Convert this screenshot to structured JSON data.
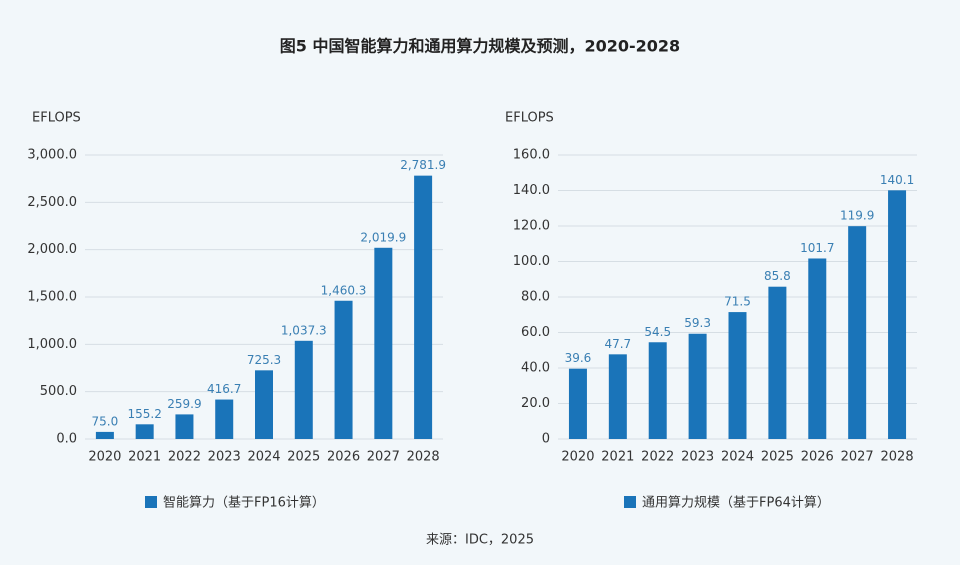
{
  "title": "图5 中国智能算力和通用算力规模及预测，2020-2028",
  "source": "来源：IDC，2025",
  "chart_data": [
    {
      "type": "bar",
      "y_label": "EFLOPS",
      "categories": [
        "2020",
        "2021",
        "2022",
        "2023",
        "2024",
        "2025",
        "2026",
        "2027",
        "2028"
      ],
      "series": [
        {
          "name": "智能算力（基于FP16计算）",
          "color": "#1a74b9",
          "values": [
            75.0,
            155.2,
            259.9,
            416.7,
            725.3,
            1037.3,
            1460.3,
            2019.9,
            2781.9
          ],
          "value_labels": [
            "75.0",
            "155.2",
            "259.9",
            "416.7",
            "725.3",
            "1,037.3",
            "1,460.3",
            "2,019.9",
            "2,781.9"
          ]
        }
      ],
      "ylim": [
        0,
        3000
      ],
      "yticks": [
        {
          "value": 0,
          "label": "0.0"
        },
        {
          "value": 500,
          "label": "500.0"
        },
        {
          "value": 1000,
          "label": "1,000.0"
        },
        {
          "value": 1500,
          "label": "1,500.0"
        },
        {
          "value": 2000,
          "label": "2,000.0"
        },
        {
          "value": 2500,
          "label": "2,500.0"
        },
        {
          "value": 3000,
          "label": "3,000.0"
        }
      ],
      "grid": true
    },
    {
      "type": "bar",
      "y_label": "EFLOPS",
      "categories": [
        "2020",
        "2021",
        "2022",
        "2023",
        "2024",
        "2025",
        "2026",
        "2027",
        "2028"
      ],
      "series": [
        {
          "name": "通用算力规模（基于FP64计算）",
          "color": "#1a74b9",
          "values": [
            39.6,
            47.7,
            54.5,
            59.3,
            71.5,
            85.8,
            101.7,
            119.9,
            140.1
          ]
        }
      ],
      "ylim": [
        0,
        160
      ],
      "yticks": [
        0,
        {
          "value": 20,
          "label": "20.0"
        },
        {
          "value": 40,
          "label": "40.0"
        },
        {
          "value": 60,
          "label": "60.0"
        },
        {
          "value": 80,
          "label": "80.0"
        },
        {
          "value": 100,
          "label": "100.0"
        },
        {
          "value": 120,
          "label": "120.0"
        },
        {
          "value": 140,
          "label": "140.0"
        },
        {
          "value": 160,
          "label": "160.0"
        }
      ],
      "grid": true
    }
  ]
}
